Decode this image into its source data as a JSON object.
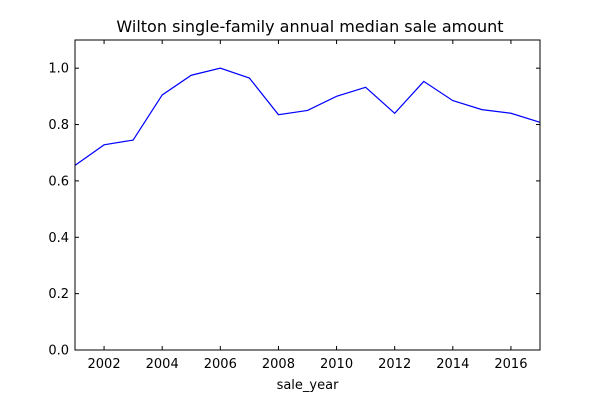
{
  "chart_data": {
    "type": "line",
    "title": "Wilton single-family annual median sale amount",
    "xlabel": "sale_year",
    "ylabel": "",
    "xlim": [
      2001,
      2017
    ],
    "ylim": [
      0.0,
      1.1
    ],
    "x_ticks": [
      2002,
      2004,
      2006,
      2008,
      2010,
      2012,
      2014,
      2016
    ],
    "y_ticks": [
      0.0,
      0.2,
      0.4,
      0.6,
      0.8,
      1.0
    ],
    "x_tick_labels": [
      "2002",
      "2004",
      "2006",
      "2008",
      "2010",
      "2012",
      "2014",
      "2016"
    ],
    "y_tick_labels": [
      "0.0",
      "0.2",
      "0.4",
      "0.6",
      "0.8",
      "1.0"
    ],
    "grid": false,
    "legend": "none",
    "series": [
      {
        "color": "#0000ff",
        "x": [
          2001,
          2002,
          2003,
          2004,
          2005,
          2006,
          2007,
          2008,
          2009,
          2010,
          2011,
          2012,
          2013,
          2014,
          2015,
          2016,
          2017
        ],
        "y": [
          0.655,
          0.728,
          0.745,
          0.905,
          0.975,
          1.0,
          0.965,
          0.835,
          0.85,
          0.9,
          0.932,
          0.84,
          0.953,
          0.885,
          0.853,
          0.84,
          0.808
        ]
      }
    ]
  }
}
